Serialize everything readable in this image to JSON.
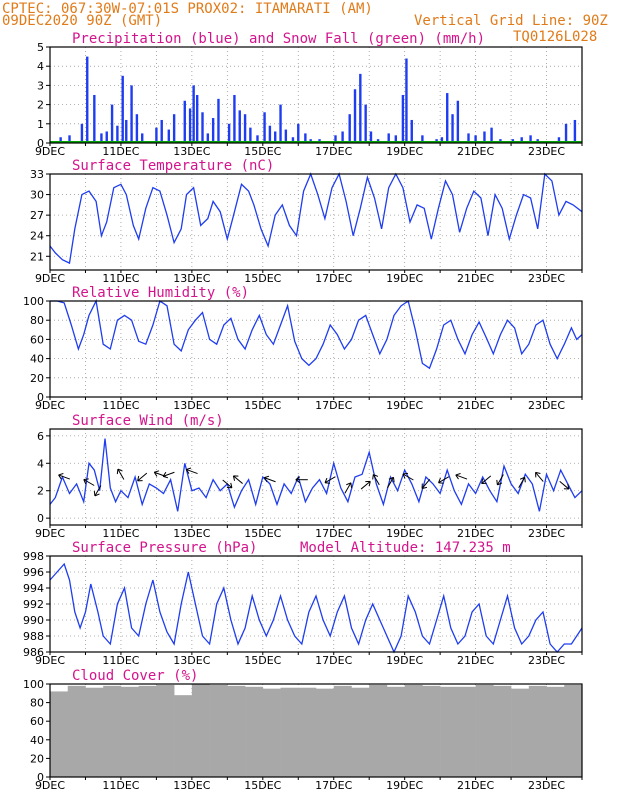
{
  "header": {
    "line1_left": "CPTEC:   067:30W-07:01S   PROX02: ITAMARATI (AM)",
    "line2_left": "09DEC2020 90Z (GMT)",
    "line2_right": "Vertical Grid Line: 90Z",
    "line3_right": "TQ0126L028",
    "altitude": "Model Altitude: 147.235 m"
  },
  "colors": {
    "header": "#e07b1a",
    "title": "#d4148c",
    "precip": "#1f3df0",
    "snow": "#00a000",
    "line": "#1f3df0",
    "cloud": "#a8a8a8",
    "grid": "#9a9a9a"
  },
  "x_axis": {
    "date_labels": [
      "9DEC",
      "11DEC",
      "13DEC",
      "15DEC",
      "17DEC",
      "19DEC",
      "21DEC",
      "23DEC"
    ],
    "day_range": [
      0,
      15
    ]
  },
  "chart_data": [
    {
      "id": "precip",
      "type": "bar",
      "title": "Precipitation (blue) and Snow Fall (green) (mm/h)",
      "ylim": [
        0,
        5
      ],
      "yticks": [
        0,
        1,
        2,
        3,
        4,
        5
      ],
      "grid": true,
      "series": [
        {
          "name": "Precipitation",
          "x": [
            0.3,
            0.55,
            0.9,
            1.05,
            1.25,
            1.45,
            1.6,
            1.75,
            1.9,
            2.05,
            2.15,
            2.3,
            2.45,
            2.6,
            3.0,
            3.15,
            3.35,
            3.5,
            3.8,
            3.95,
            4.05,
            4.15,
            4.3,
            4.45,
            4.6,
            4.75,
            5.05,
            5.2,
            5.35,
            5.5,
            5.65,
            5.85,
            6.05,
            6.2,
            6.35,
            6.5,
            6.65,
            6.85,
            7.0,
            7.2,
            7.35,
            7.6,
            8.05,
            8.25,
            8.45,
            8.6,
            8.75,
            8.9,
            9.05,
            9.25,
            9.55,
            9.75,
            9.95,
            10.05,
            10.2,
            10.5,
            10.9,
            11.05,
            11.2,
            11.35,
            11.5,
            11.8,
            12.0,
            12.25,
            12.45,
            12.7,
            13.05,
            13.3,
            13.55,
            13.75,
            14.35,
            14.55,
            14.8
          ],
          "values": [
            0.3,
            0.4,
            1.0,
            4.5,
            2.5,
            0.5,
            0.6,
            2.0,
            0.9,
            3.5,
            1.2,
            3.0,
            1.5,
            0.5,
            0.8,
            1.2,
            0.7,
            1.5,
            2.2,
            1.8,
            3.0,
            2.5,
            1.6,
            0.5,
            1.3,
            2.3,
            1.0,
            2.5,
            1.7,
            1.5,
            0.8,
            0.4,
            1.6,
            0.9,
            0.6,
            2.0,
            0.7,
            0.3,
            1.0,
            0.5,
            0.2,
            0.2,
            0.4,
            0.6,
            1.5,
            2.8,
            3.6,
            2.0,
            0.6,
            0.2,
            0.5,
            0.4,
            2.5,
            4.4,
            1.2,
            0.4,
            0.2,
            0.3,
            2.6,
            1.5,
            2.2,
            0.5,
            0.4,
            0.6,
            0.8,
            0.2,
            0.2,
            0.3,
            0.4,
            0.2,
            0.3,
            1.0,
            1.2
          ]
        },
        {
          "name": "Snow Fall",
          "x": [
            0,
            15
          ],
          "values": [
            0,
            0
          ]
        }
      ]
    },
    {
      "id": "temperature",
      "type": "line",
      "title": "Surface Temperature (nC)",
      "ylim": [
        19,
        33
      ],
      "yticks": [
        21,
        24,
        27,
        30,
        33
      ],
      "grid": true,
      "series": [
        {
          "x": [
            0,
            0.15,
            0.35,
            0.55,
            0.7,
            0.9,
            1.1,
            1.3,
            1.45,
            1.6,
            1.8,
            2.0,
            2.15,
            2.35,
            2.5,
            2.7,
            2.9,
            3.1,
            3.3,
            3.5,
            3.7,
            3.85,
            4.05,
            4.25,
            4.45,
            4.6,
            4.8,
            5.0,
            5.15,
            5.4,
            5.6,
            5.75,
            5.95,
            6.15,
            6.35,
            6.55,
            6.75,
            6.95,
            7.15,
            7.35,
            7.55,
            7.75,
            7.95,
            8.15,
            8.35,
            8.55,
            8.75,
            8.95,
            9.15,
            9.35,
            9.55,
            9.75,
            9.95,
            10.15,
            10.35,
            10.55,
            10.75,
            10.95,
            11.15,
            11.35,
            11.55,
            11.75,
            11.95,
            12.15,
            12.35,
            12.55,
            12.75,
            12.95,
            13.15,
            13.35,
            13.55,
            13.75,
            13.95,
            14.15,
            14.35,
            14.55,
            14.75,
            15.0
          ],
          "values": [
            22.5,
            21.5,
            20.5,
            20.0,
            25.0,
            30.0,
            30.5,
            29.0,
            24.0,
            26.0,
            31.0,
            31.5,
            30.0,
            25.5,
            23.5,
            28.0,
            31.0,
            30.5,
            27.0,
            23.0,
            25.0,
            30.0,
            31.0,
            25.5,
            26.5,
            29.0,
            27.5,
            23.5,
            26.5,
            31.5,
            30.5,
            28.5,
            25.0,
            22.5,
            27.0,
            28.5,
            25.5,
            24.0,
            30.5,
            33.0,
            30.0,
            26.5,
            31.0,
            33.0,
            29.0,
            24.0,
            28.0,
            32.5,
            29.5,
            25.0,
            31.0,
            33.0,
            31.0,
            26.0,
            28.5,
            28.0,
            23.5,
            28.0,
            32.0,
            30.0,
            24.5,
            28.0,
            30.5,
            29.5,
            24.0,
            30.0,
            28.0,
            23.5,
            27.0,
            30.0,
            29.5,
            25.0,
            33.0,
            32.0,
            27.0,
            29.0,
            28.5,
            27.5
          ]
        }
      ]
    },
    {
      "id": "humidity",
      "type": "line",
      "title": "Relative Humidity (%)",
      "ylim": [
        0,
        100
      ],
      "yticks": [
        0,
        20,
        40,
        60,
        80,
        100
      ],
      "grid": true,
      "series": [
        {
          "x": [
            0,
            0.2,
            0.4,
            0.6,
            0.8,
            0.95,
            1.1,
            1.3,
            1.5,
            1.7,
            1.9,
            2.1,
            2.3,
            2.5,
            2.7,
            2.9,
            3.1,
            3.3,
            3.5,
            3.7,
            3.9,
            4.1,
            4.3,
            4.5,
            4.7,
            4.9,
            5.1,
            5.3,
            5.5,
            5.7,
            5.9,
            6.1,
            6.3,
            6.5,
            6.7,
            6.9,
            7.1,
            7.3,
            7.5,
            7.7,
            7.9,
            8.1,
            8.3,
            8.5,
            8.7,
            8.9,
            9.1,
            9.3,
            9.5,
            9.7,
            9.9,
            10.1,
            10.3,
            10.5,
            10.7,
            10.9,
            11.1,
            11.3,
            11.5,
            11.7,
            11.9,
            12.1,
            12.3,
            12.5,
            12.7,
            12.9,
            13.1,
            13.3,
            13.5,
            13.7,
            13.9,
            14.1,
            14.3,
            14.5,
            14.7,
            14.85,
            15.0
          ],
          "values": [
            100,
            100,
            98,
            75,
            50,
            65,
            85,
            100,
            55,
            50,
            80,
            85,
            80,
            58,
            55,
            75,
            100,
            95,
            55,
            48,
            70,
            80,
            88,
            60,
            55,
            75,
            82,
            60,
            50,
            70,
            85,
            65,
            55,
            75,
            95,
            58,
            40,
            33,
            40,
            55,
            75,
            65,
            50,
            60,
            80,
            85,
            65,
            45,
            60,
            85,
            95,
            100,
            70,
            35,
            30,
            50,
            75,
            80,
            60,
            45,
            65,
            78,
            62,
            45,
            65,
            80,
            72,
            45,
            55,
            75,
            80,
            55,
            40,
            55,
            72,
            60,
            65
          ]
        }
      ]
    },
    {
      "id": "wind",
      "type": "line",
      "title": "Surface Wind (m/s)",
      "ylim": [
        -0.5,
        6.5
      ],
      "yticks": [
        0,
        2,
        4,
        6
      ],
      "grid": true,
      "series": [
        {
          "x": [
            0,
            0.15,
            0.35,
            0.55,
            0.75,
            0.95,
            1.1,
            1.25,
            1.4,
            1.55,
            1.7,
            1.85,
            2.0,
            2.2,
            2.4,
            2.6,
            2.8,
            3.0,
            3.2,
            3.4,
            3.6,
            3.8,
            4.0,
            4.2,
            4.4,
            4.6,
            4.8,
            5.0,
            5.2,
            5.4,
            5.6,
            5.8,
            6.0,
            6.2,
            6.4,
            6.6,
            6.8,
            7.0,
            7.2,
            7.4,
            7.6,
            7.8,
            8.0,
            8.2,
            8.4,
            8.6,
            8.8,
            9.0,
            9.2,
            9.4,
            9.6,
            9.8,
            10.0,
            10.2,
            10.4,
            10.6,
            10.8,
            11.0,
            11.2,
            11.4,
            11.6,
            11.8,
            12.0,
            12.2,
            12.4,
            12.6,
            12.8,
            13.0,
            13.2,
            13.4,
            13.6,
            13.8,
            14.0,
            14.2,
            14.4,
            14.6,
            14.8,
            15.0
          ],
          "values": [
            1.0,
            1.5,
            3.0,
            1.8,
            2.5,
            1.2,
            4.0,
            3.5,
            2.0,
            5.8,
            2.2,
            1.2,
            2.0,
            1.5,
            3.0,
            1.0,
            2.5,
            2.2,
            1.8,
            2.8,
            0.5,
            4.0,
            2.0,
            2.2,
            1.5,
            2.8,
            2.0,
            2.5,
            0.8,
            2.0,
            2.8,
            1.0,
            3.0,
            2.5,
            1.0,
            2.5,
            1.8,
            3.0,
            1.2,
            2.2,
            2.8,
            1.8,
            4.0,
            2.2,
            1.2,
            3.0,
            3.2,
            4.8,
            2.5,
            1.0,
            3.0,
            2.0,
            3.5,
            2.5,
            1.2,
            3.0,
            2.5,
            1.8,
            3.5,
            2.0,
            1.0,
            2.5,
            1.8,
            3.0,
            2.0,
            1.2,
            3.8,
            2.5,
            1.8,
            3.2,
            2.5,
            0.5,
            3.2,
            2.0,
            3.5,
            2.5,
            1.5,
            2.0
          ]
        }
      ],
      "arrows": [
        {
          "x": 0.4,
          "y": 3.0,
          "dir": 200
        },
        {
          "x": 1.1,
          "y": 2.6,
          "dir": 210
        },
        {
          "x": 1.35,
          "y": 2.0,
          "dir": 120
        },
        {
          "x": 2.0,
          "y": 3.2,
          "dir": 240
        },
        {
          "x": 2.6,
          "y": 3.0,
          "dir": 140
        },
        {
          "x": 3.1,
          "y": 3.2,
          "dir": 200
        },
        {
          "x": 3.35,
          "y": 3.2,
          "dir": 160
        },
        {
          "x": 4.0,
          "y": 3.4,
          "dir": 200
        },
        {
          "x": 5.0,
          "y": 2.5,
          "dir": 40
        },
        {
          "x": 5.3,
          "y": 2.8,
          "dir": 220
        },
        {
          "x": 6.2,
          "y": 2.8,
          "dir": 200
        },
        {
          "x": 7.1,
          "y": 2.8,
          "dir": 180
        },
        {
          "x": 7.9,
          "y": 2.8,
          "dir": 150
        },
        {
          "x": 8.4,
          "y": 2.2,
          "dir": 300
        },
        {
          "x": 8.9,
          "y": 2.4,
          "dir": 320
        },
        {
          "x": 9.2,
          "y": 2.8,
          "dir": 240
        },
        {
          "x": 9.6,
          "y": 2.6,
          "dir": 300
        },
        {
          "x": 10.1,
          "y": 3.0,
          "dir": 210
        },
        {
          "x": 10.6,
          "y": 2.5,
          "dir": 130
        },
        {
          "x": 11.1,
          "y": 2.8,
          "dir": 150
        },
        {
          "x": 11.6,
          "y": 3.0,
          "dir": 200
        },
        {
          "x": 12.3,
          "y": 2.8,
          "dir": 140
        },
        {
          "x": 12.7,
          "y": 2.8,
          "dir": 120
        },
        {
          "x": 13.3,
          "y": 2.6,
          "dir": 300
        },
        {
          "x": 13.8,
          "y": 3.0,
          "dir": 230
        },
        {
          "x": 14.5,
          "y": 2.4,
          "dir": 40
        }
      ]
    },
    {
      "id": "pressure",
      "type": "line",
      "title": "Surface Pressure (hPa)",
      "ylim": [
        986,
        998
      ],
      "yticks": [
        986,
        988,
        990,
        992,
        994,
        996,
        998
      ],
      "grid": true,
      "series": [
        {
          "x": [
            0,
            0.2,
            0.4,
            0.55,
            0.7,
            0.85,
            1.0,
            1.15,
            1.35,
            1.5,
            1.7,
            1.9,
            2.1,
            2.3,
            2.5,
            2.7,
            2.9,
            3.1,
            3.3,
            3.5,
            3.7,
            3.9,
            4.1,
            4.3,
            4.5,
            4.7,
            4.9,
            5.1,
            5.3,
            5.5,
            5.7,
            5.9,
            6.1,
            6.3,
            6.5,
            6.7,
            6.9,
            7.1,
            7.3,
            7.5,
            7.7,
            7.9,
            8.1,
            8.3,
            8.5,
            8.7,
            8.9,
            9.1,
            9.3,
            9.5,
            9.7,
            9.9,
            10.1,
            10.3,
            10.5,
            10.7,
            10.9,
            11.1,
            11.3,
            11.5,
            11.7,
            11.9,
            12.1,
            12.3,
            12.5,
            12.7,
            12.9,
            13.1,
            13.3,
            13.5,
            13.7,
            13.9,
            14.1,
            14.3,
            14.5,
            14.7,
            14.85,
            15.0
          ],
          "values": [
            995,
            996,
            997,
            995,
            991,
            989,
            991,
            994.5,
            991,
            988,
            987,
            992,
            994,
            989,
            988,
            992,
            995,
            991,
            988.5,
            987,
            992,
            996,
            992,
            988,
            987,
            992,
            994,
            990,
            987,
            989,
            993,
            990,
            988,
            990,
            993,
            990,
            988,
            987,
            991,
            993,
            990,
            988,
            991,
            993,
            989,
            987,
            990,
            992,
            990,
            988,
            986,
            988,
            993,
            991,
            988,
            987,
            990,
            993,
            989,
            987,
            988,
            991,
            992,
            988,
            987,
            990,
            993,
            989,
            987,
            988,
            990,
            991,
            987,
            986,
            987,
            987,
            988,
            989
          ]
        }
      ]
    },
    {
      "id": "cloud",
      "type": "bar",
      "title": "Cloud Cover (%)",
      "ylim": [
        0,
        100
      ],
      "yticks": [
        0,
        20,
        40,
        60,
        80,
        100
      ],
      "grid": true,
      "series": [
        {
          "x": [
            0,
            0.5,
            1.0,
            1.5,
            2.0,
            2.5,
            3.0,
            3.5,
            4.0,
            4.5,
            5.0,
            5.5,
            6.0,
            6.5,
            7.0,
            7.5,
            8.0,
            8.5,
            9.0,
            9.5,
            10.0,
            10.5,
            11.0,
            11.5,
            12.0,
            12.5,
            13.0,
            13.5,
            14.0,
            14.5
          ],
          "values": [
            92,
            98,
            96,
            98,
            97,
            98,
            99,
            88,
            100,
            99,
            98,
            97,
            95,
            96,
            96,
            95,
            98,
            96,
            99,
            97,
            99,
            98,
            97,
            97,
            99,
            98,
            95,
            98,
            97,
            99
          ]
        }
      ]
    }
  ]
}
